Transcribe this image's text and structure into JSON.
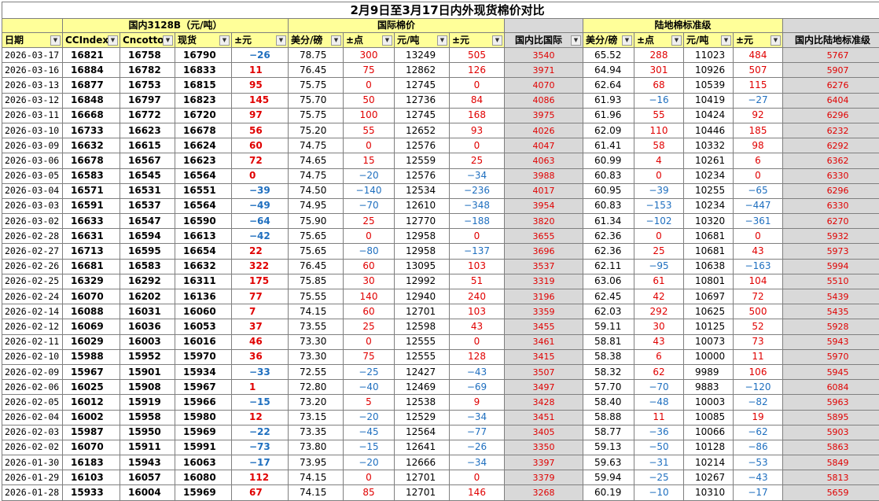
{
  "title": "2月9日至3月17日内外现货棉价对比",
  "groups": {
    "domestic": "国内3128B（元/吨）",
    "international": "国际棉价",
    "blank": "",
    "landed": "陆地棉标准级"
  },
  "headers": [
    "日期",
    "CCIndex",
    "Cncotton",
    "现货",
    "±元",
    "美分/磅",
    "±点",
    "元/吨",
    "±元",
    "国内比国际",
    "美分/磅",
    "±点",
    "元/吨",
    "±元",
    "国内比陆地标准级"
  ],
  "rows": [
    [
      "2026-03-17",
      "16821",
      "16758",
      "16790",
      "-26",
      "78.75",
      "300",
      "13249",
      "505",
      "3540",
      "65.52",
      "288",
      "11023",
      "484",
      "5767"
    ],
    [
      "2026-03-16",
      "16884",
      "16782",
      "16833",
      "11",
      "76.45",
      "75",
      "12862",
      "126",
      "3971",
      "64.94",
      "301",
      "10926",
      "507",
      "5907"
    ],
    [
      "2026-03-13",
      "16877",
      "16753",
      "16815",
      "95",
      "75.75",
      "0",
      "12745",
      "0",
      "4070",
      "62.64",
      "68",
      "10539",
      "115",
      "6276"
    ],
    [
      "2026-03-12",
      "16848",
      "16797",
      "16823",
      "145",
      "75.70",
      "50",
      "12736",
      "84",
      "4086",
      "61.93",
      "-16",
      "10419",
      "-27",
      "6404"
    ],
    [
      "2026-03-11",
      "16668",
      "16772",
      "16720",
      "97",
      "75.75",
      "100",
      "12745",
      "168",
      "3975",
      "61.96",
      "55",
      "10424",
      "92",
      "6296"
    ],
    [
      "2026-03-10",
      "16733",
      "16623",
      "16678",
      "56",
      "75.20",
      "55",
      "12652",
      "93",
      "4026",
      "62.09",
      "110",
      "10446",
      "185",
      "6232"
    ],
    [
      "2026-03-09",
      "16632",
      "16615",
      "16624",
      "60",
      "74.75",
      "0",
      "12576",
      "0",
      "4047",
      "61.41",
      "58",
      "10332",
      "98",
      "6292"
    ],
    [
      "2026-03-06",
      "16678",
      "16567",
      "16623",
      "72",
      "74.65",
      "15",
      "12559",
      "25",
      "4063",
      "60.99",
      "4",
      "10261",
      "6",
      "6362"
    ],
    [
      "2026-03-05",
      "16583",
      "16545",
      "16564",
      "0",
      "74.75",
      "-20",
      "12576",
      "-34",
      "3988",
      "60.83",
      "0",
      "10234",
      "0",
      "6330"
    ],
    [
      "2026-03-04",
      "16571",
      "16531",
      "16551",
      "-39",
      "74.50",
      "-140",
      "12534",
      "-236",
      "4017",
      "60.95",
      "-39",
      "10255",
      "-65",
      "6296"
    ],
    [
      "2026-03-03",
      "16591",
      "16537",
      "16564",
      "-49",
      "74.95",
      "-70",
      "12610",
      "-348",
      "3954",
      "60.83",
      "-153",
      "10234",
      "-447",
      "6330"
    ],
    [
      "2026-03-02",
      "16633",
      "16547",
      "16590",
      "-64",
      "75.90",
      "25",
      "12770",
      "-188",
      "3820",
      "61.34",
      "-102",
      "10320",
      "-361",
      "6270"
    ],
    [
      "2026-02-28",
      "16631",
      "16594",
      "16613",
      "-42",
      "75.65",
      "0",
      "12958",
      "0",
      "3655",
      "62.36",
      "0",
      "10681",
      "0",
      "5932"
    ],
    [
      "2026-02-27",
      "16713",
      "16595",
      "16654",
      "22",
      "75.65",
      "-80",
      "12958",
      "-137",
      "3696",
      "62.36",
      "25",
      "10681",
      "43",
      "5973"
    ],
    [
      "2026-02-26",
      "16681",
      "16583",
      "16632",
      "322",
      "76.45",
      "60",
      "13095",
      "103",
      "3537",
      "62.11",
      "-95",
      "10638",
      "-163",
      "5994"
    ],
    [
      "2026-02-25",
      "16329",
      "16292",
      "16311",
      "175",
      "75.85",
      "30",
      "12992",
      "51",
      "3319",
      "63.06",
      "61",
      "10801",
      "104",
      "5510"
    ],
    [
      "2026-02-24",
      "16070",
      "16202",
      "16136",
      "77",
      "75.55",
      "140",
      "12940",
      "240",
      "3196",
      "62.45",
      "42",
      "10697",
      "72",
      "5439"
    ],
    [
      "2026-02-14",
      "16088",
      "16031",
      "16060",
      "7",
      "74.15",
      "60",
      "12701",
      "103",
      "3359",
      "62.03",
      "292",
      "10625",
      "500",
      "5435"
    ],
    [
      "2026-02-12",
      "16069",
      "16036",
      "16053",
      "37",
      "73.55",
      "25",
      "12598",
      "43",
      "3455",
      "59.11",
      "30",
      "10125",
      "52",
      "5928"
    ],
    [
      "2026-02-11",
      "16029",
      "16003",
      "16016",
      "46",
      "73.30",
      "0",
      "12555",
      "0",
      "3461",
      "58.81",
      "43",
      "10073",
      "73",
      "5943"
    ],
    [
      "2026-02-10",
      "15988",
      "15952",
      "15970",
      "36",
      "73.30",
      "75",
      "12555",
      "128",
      "3415",
      "58.38",
      "6",
      "10000",
      "11",
      "5970"
    ],
    [
      "2026-02-09",
      "15967",
      "15901",
      "15934",
      "-33",
      "72.55",
      "-25",
      "12427",
      "-43",
      "3507",
      "58.32",
      "62",
      "9989",
      "106",
      "5945"
    ],
    [
      "2026-02-06",
      "16025",
      "15908",
      "15967",
      "1",
      "72.80",
      "-40",
      "12469",
      "-69",
      "3497",
      "57.70",
      "-70",
      "9883",
      "-120",
      "6084"
    ],
    [
      "2026-02-05",
      "16012",
      "15919",
      "15966",
      "-15",
      "73.20",
      "5",
      "12538",
      "9",
      "3428",
      "58.40",
      "-48",
      "10003",
      "-82",
      "5963"
    ],
    [
      "2026-02-04",
      "16002",
      "15958",
      "15980",
      "12",
      "73.15",
      "-20",
      "12529",
      "-34",
      "3451",
      "58.88",
      "11",
      "10085",
      "19",
      "5895"
    ],
    [
      "2026-02-03",
      "15987",
      "15950",
      "15969",
      "-22",
      "73.35",
      "-45",
      "12564",
      "-77",
      "3405",
      "58.77",
      "-36",
      "10066",
      "-62",
      "5903"
    ],
    [
      "2026-02-02",
      "16070",
      "15911",
      "15991",
      "-73",
      "73.80",
      "-15",
      "12641",
      "-26",
      "3350",
      "59.13",
      "-50",
      "10128",
      "-86",
      "5863"
    ],
    [
      "2026-01-30",
      "16183",
      "15943",
      "16063",
      "-17",
      "73.95",
      "-20",
      "12666",
      "-34",
      "3397",
      "59.63",
      "-31",
      "10214",
      "-53",
      "5849"
    ],
    [
      "2026-01-29",
      "16103",
      "16057",
      "16080",
      "112",
      "74.15",
      "0",
      "12701",
      "0",
      "3379",
      "59.94",
      "-25",
      "10267",
      "-43",
      "5813"
    ],
    [
      "2026-01-28",
      "15933",
      "16004",
      "15969",
      "67",
      "74.15",
      "85",
      "12701",
      "146",
      "3268",
      "60.19",
      "-10",
      "10310",
      "-17",
      "5659"
    ]
  ]
}
